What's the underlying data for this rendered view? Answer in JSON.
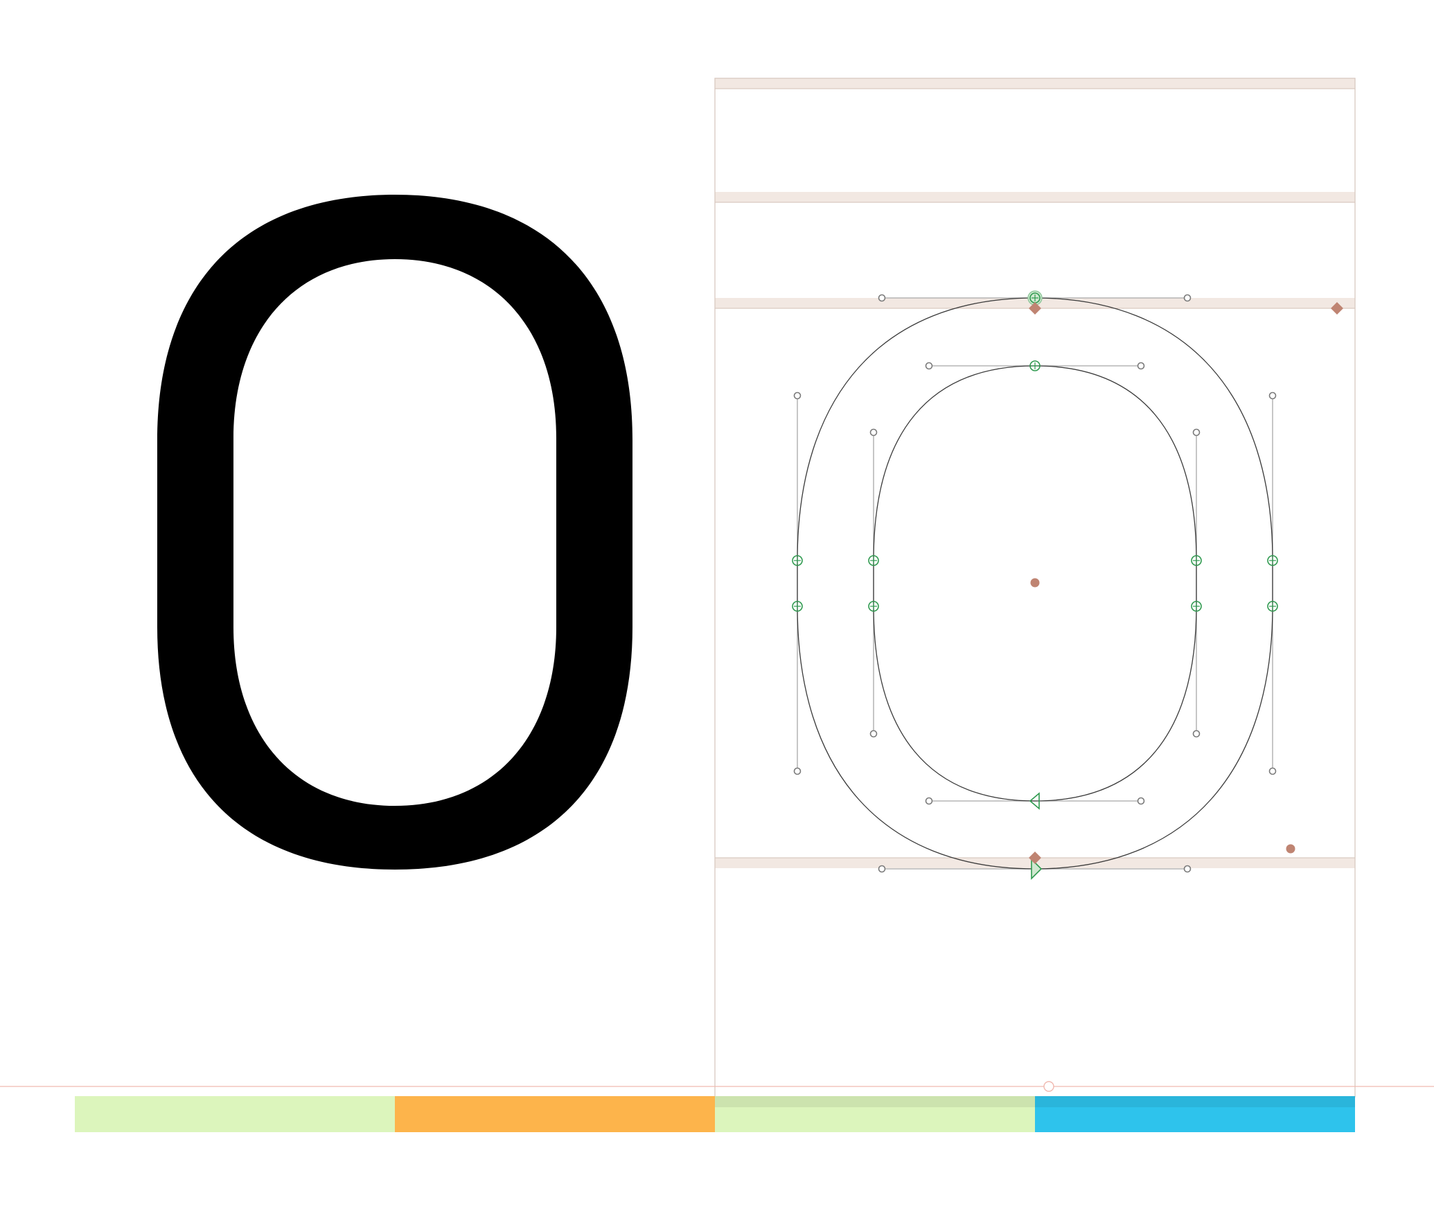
{
  "glyph": {
    "character": "O",
    "preview_color": "#000000",
    "outline_color": "#3a3a3a"
  },
  "colors": {
    "guide_band": "#f2e8e2",
    "node": "#2f9a4f",
    "anchor": "#bf8472",
    "handle": "#7a7a7a",
    "baseline": "#f0b9b0"
  },
  "metrics_bar": {
    "segments": [
      {
        "name": "left-margin-green",
        "color": "#dcf5bc"
      },
      {
        "name": "left-sidebearing-orange",
        "color": "#fdb44b"
      },
      {
        "name": "right-sidebearing-green",
        "color": "#dcf5bc"
      },
      {
        "name": "right-margin-blue",
        "color": "#2ec3ec"
      }
    ]
  }
}
